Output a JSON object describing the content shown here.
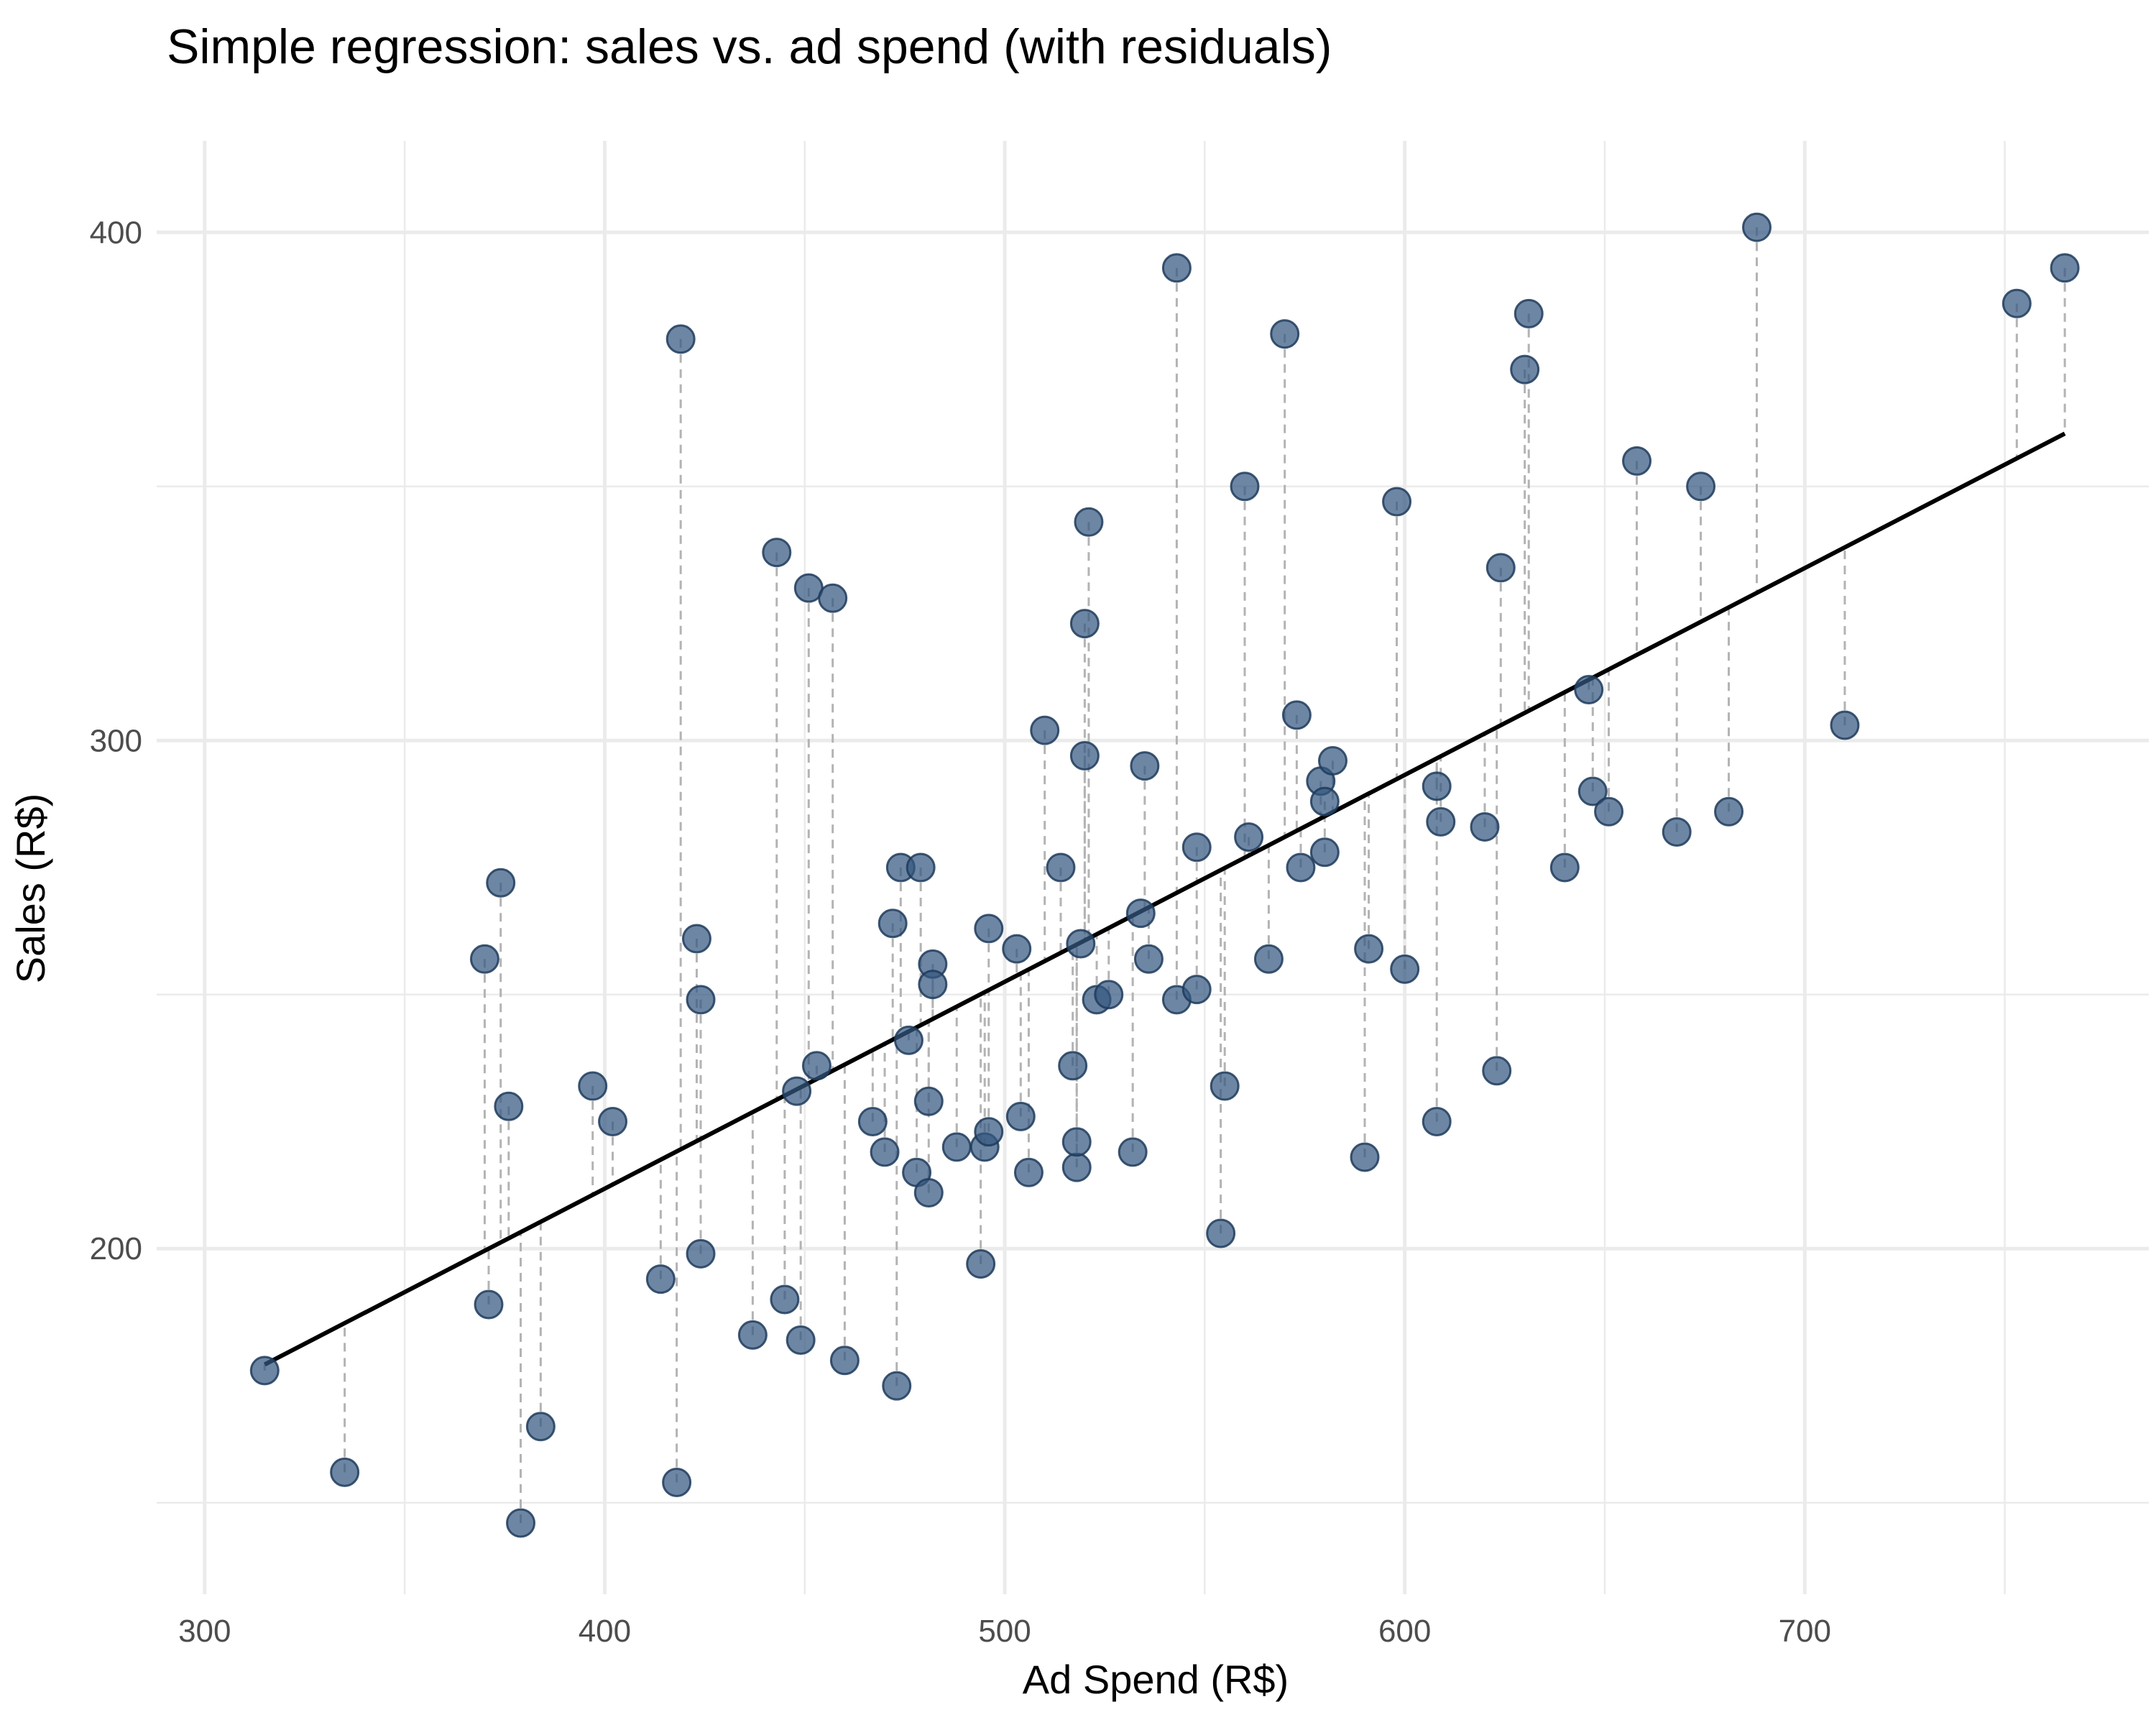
{
  "chart_data": {
    "type": "scatter",
    "title": "Simple regression: sales vs. ad spend (with residuals)",
    "xlabel": "Ad Spend (R$)",
    "ylabel": "Sales (R$)",
    "xlim": [
      288,
      786
    ],
    "ylim": [
      132,
      418
    ],
    "x_ticks": [
      300,
      400,
      500,
      600,
      700
    ],
    "y_ticks": [
      200,
      300,
      400
    ],
    "grid": true,
    "point_color": "#35577f",
    "fit_color": "#000000",
    "residual_color": "#b3b3b3",
    "fit": {
      "x_start": 315,
      "y_start": 177.2,
      "x_end": 765,
      "y_end": 360.4
    },
    "series": [
      {
        "x": [
          315,
          335,
          370,
          371,
          374,
          376,
          379,
          384,
          397,
          402,
          414,
          418,
          419,
          423,
          424,
          424,
          437,
          443,
          445,
          448,
          449,
          451,
          453,
          457,
          460,
          467,
          470,
          472,
          473,
          474,
          476,
          478,
          479,
          481,
          481,
          482,
          482,
          488,
          494,
          495,
          496,
          496,
          503,
          504,
          506,
          510,
          514,
          517,
          518,
          518,
          519,
          520,
          520,
          521,
          523,
          526,
          532,
          534,
          535,
          536,
          543,
          543,
          548,
          548,
          554,
          555,
          560,
          561,
          566,
          570,
          573,
          574,
          579,
          580,
          580,
          582,
          590,
          591,
          598,
          600,
          608,
          608,
          609,
          620,
          623,
          624,
          630,
          631,
          640,
          646,
          647,
          651,
          658,
          668,
          674,
          681,
          688,
          710,
          753,
          765
        ],
        "y": [
          176,
          156,
          257,
          189,
          272,
          228,
          146,
          165,
          232,
          225,
          194,
          154,
          379,
          261,
          199,
          249,
          183,
          337,
          190,
          231,
          182,
          330,
          236,
          328,
          178,
          225,
          219,
          264,
          173,
          275,
          241,
          215,
          275,
          211,
          229,
          256,
          252,
          220,
          197,
          220,
          223,
          263,
          259,
          226,
          215,
          302,
          275,
          236,
          216,
          221,
          260,
          297,
          323,
          343,
          249,
          250,
          219,
          266,
          295,
          257,
          249,
          393,
          279,
          251,
          203,
          232,
          350,
          281,
          257,
          380,
          305,
          275,
          292,
          288,
          278,
          296,
          218,
          259,
          347,
          255,
          225,
          291,
          284,
          283,
          235,
          334,
          373,
          384,
          275,
          310,
          290,
          286,
          355,
          282,
          350,
          286,
          401,
          303,
          386,
          393
        ]
      }
    ]
  }
}
